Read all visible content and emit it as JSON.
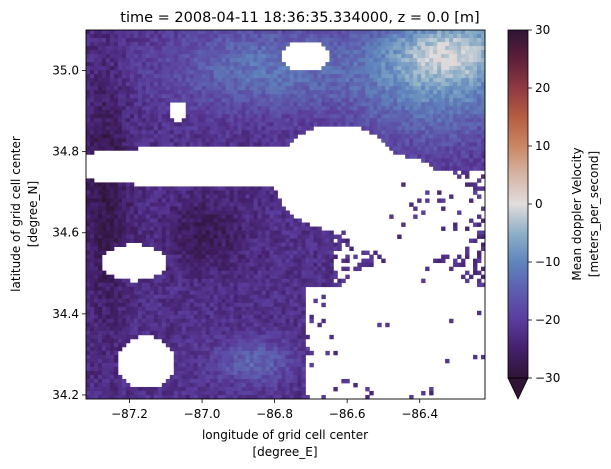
{
  "chart_data": {
    "type": "heatmap",
    "title": "time = 2008-04-11 18:36:35.334000, z = 0.0 [m]",
    "xlabel_line1": "longitude of grid cell center",
    "xlabel_line2": "[degree_E]",
    "ylabel_line1": "latitude of grid cell center",
    "ylabel_line2": "[degree_N]",
    "xlim": [
      -87.32,
      -86.22
    ],
    "ylim": [
      34.19,
      35.1
    ],
    "x_ticks": [
      {
        "value": -87.2,
        "label": "−87.2"
      },
      {
        "value": -87.0,
        "label": "−87.0"
      },
      {
        "value": -86.8,
        "label": "−86.8"
      },
      {
        "value": -86.6,
        "label": "−86.6"
      },
      {
        "value": -86.4,
        "label": "−86.4"
      }
    ],
    "y_ticks": [
      {
        "value": 34.2,
        "label": "34.2"
      },
      {
        "value": 34.4,
        "label": "34.4"
      },
      {
        "value": 34.6,
        "label": "34.6"
      },
      {
        "value": 34.8,
        "label": "34.8"
      },
      {
        "value": 35.0,
        "label": "35.0"
      }
    ],
    "colorbar": {
      "label_line1": "Mean doppler Velocity",
      "label_line2": "[meters_per_second]",
      "vmin": -30,
      "vmax": 30,
      "extend": "min",
      "colormap": "twilight_shifted",
      "ticks": [
        {
          "value": -30,
          "label": "−30"
        },
        {
          "value": -20,
          "label": "−20"
        },
        {
          "value": -10,
          "label": "−10"
        },
        {
          "value": 0,
          "label": "0"
        },
        {
          "value": 10,
          "label": "10"
        },
        {
          "value": 20,
          "label": "20"
        },
        {
          "value": 30,
          "label": "30"
        }
      ],
      "color_stops": [
        {
          "v": -30,
          "color": "#2f1436"
        },
        {
          "v": -25,
          "color": "#44206b"
        },
        {
          "v": -20,
          "color": "#5a3c9c"
        },
        {
          "v": -15,
          "color": "#5e5dae"
        },
        {
          "v": -10,
          "color": "#5f85bd"
        },
        {
          "v": -5,
          "color": "#8fb0c8"
        },
        {
          "v": 0,
          "color": "#e1dcdc"
        },
        {
          "v": 5,
          "color": "#d6b5a6"
        },
        {
          "v": 10,
          "color": "#c98763"
        },
        {
          "v": 15,
          "color": "#b45d42"
        },
        {
          "v": 20,
          "color": "#8e3a42"
        },
        {
          "v": 25,
          "color": "#5e1f3a"
        },
        {
          "v": 30,
          "color": "#2f1436"
        }
      ]
    },
    "grid": false,
    "velocity_field_approx": {
      "description_of_regions_in_data_units": "no-data areas shown white",
      "regions": [
        {
          "lon_range": [
            -87.32,
            -86.95
          ],
          "lat_range": [
            34.2,
            35.1
          ],
          "mean_velocity": -24
        },
        {
          "lon_range": [
            -87.2,
            -86.75
          ],
          "lat_range": [
            34.95,
            35.1
          ],
          "mean_velocity": -12
        },
        {
          "lon_range": [
            -87.05,
            -86.65
          ],
          "lat_range": [
            34.2,
            34.42
          ],
          "mean_velocity": -20
        },
        {
          "lon_range": [
            -86.55,
            -86.22
          ],
          "lat_range": [
            34.95,
            35.1
          ],
          "mean_velocity": 8
        },
        {
          "lon_range": [
            -86.6,
            -86.22
          ],
          "lat_range": [
            34.7,
            34.95
          ],
          "mean_velocity": -7
        }
      ]
    }
  }
}
